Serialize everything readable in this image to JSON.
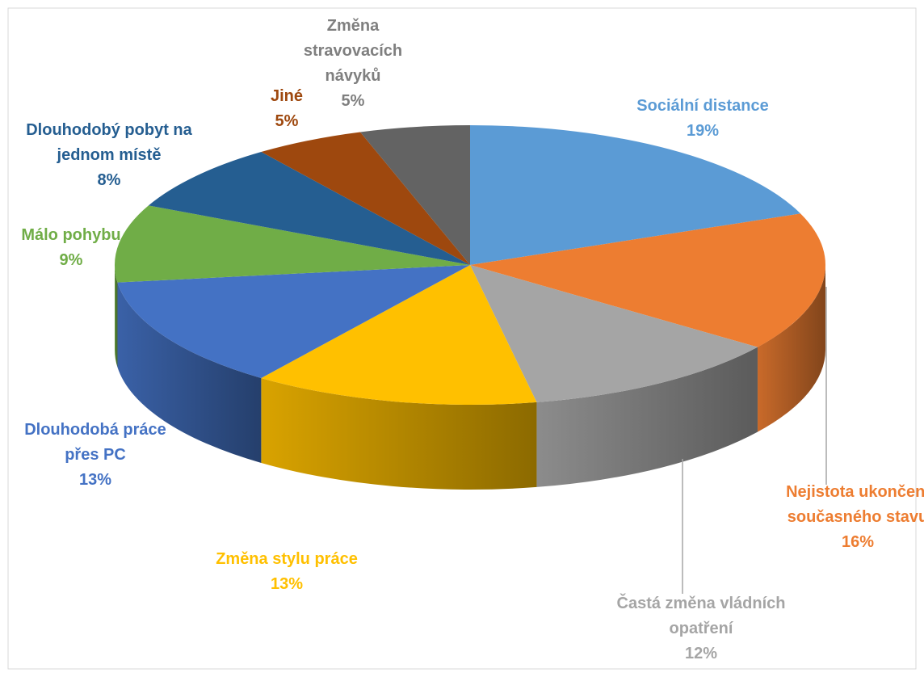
{
  "chart_data": {
    "type": "pie3d",
    "categories": [
      "Sociální distance",
      "Nejistota ukončení současného stavu",
      "Častá změna vládních opatření",
      "Změna stylu práce",
      "Dlouhodobá práce přes PC",
      "Málo pohybu",
      "Dlouhodobý pobyt na jednom místě",
      "Jiné",
      "Změna stravovacích návyků"
    ],
    "values": [
      19,
      16,
      12,
      13,
      13,
      9,
      8,
      5,
      5
    ],
    "value_labels": [
      "19%",
      "16%",
      "12%",
      "13%",
      "13%",
      "9%",
      "8%",
      "5%",
      "5%"
    ],
    "colors": [
      "#5b9bd5",
      "#ed7d31",
      "#a5a5a5",
      "#ffc000",
      "#4472c4",
      "#70ad47",
      "#255e91",
      "#9e480e",
      "#636363"
    ]
  }
}
